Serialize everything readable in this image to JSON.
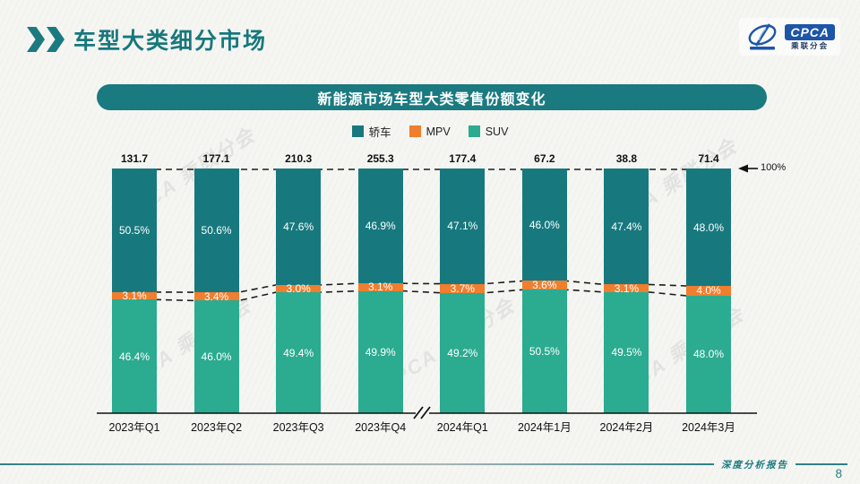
{
  "header": {
    "title": "车型大类细分市场"
  },
  "logo": {
    "abbr": "CPCA",
    "name": "乘联分会"
  },
  "banner": {
    "title": "新能源市场车型大类零售份额变化"
  },
  "chart_data": {
    "type": "bar",
    "stacked": true,
    "unit": "%",
    "categories": [
      "2023年Q1",
      "2023年Q2",
      "2023年Q3",
      "2023年Q4",
      "2024年Q1",
      "2024年1月",
      "2024年2月",
      "2024年3月"
    ],
    "totals": [
      "131.7",
      "177.1",
      "210.3",
      "255.3",
      "177.4",
      "67.2",
      "38.8",
      "71.4"
    ],
    "series": [
      {
        "name": "轿车",
        "key": "sedan",
        "color": "#17797e",
        "values": [
          50.5,
          50.6,
          47.6,
          46.9,
          47.1,
          46.0,
          47.4,
          48.0
        ]
      },
      {
        "name": "MPV",
        "key": "mpv",
        "color": "#ef7e2e",
        "values": [
          3.1,
          3.4,
          3.0,
          3.1,
          3.7,
          3.6,
          3.1,
          4.0
        ]
      },
      {
        "name": "SUV",
        "key": "suv",
        "color": "#2bab90",
        "values": [
          46.4,
          46.0,
          49.4,
          49.9,
          49.2,
          50.5,
          49.5,
          48.0
        ]
      }
    ],
    "reference_line_label": "100%",
    "axis_break_after_index": 3,
    "legend_position": "top",
    "ylim": [
      0,
      100
    ]
  },
  "watermark": "CPCA 乘联分会",
  "footer": {
    "report_label": "深度分析报告",
    "page_number": "8"
  }
}
